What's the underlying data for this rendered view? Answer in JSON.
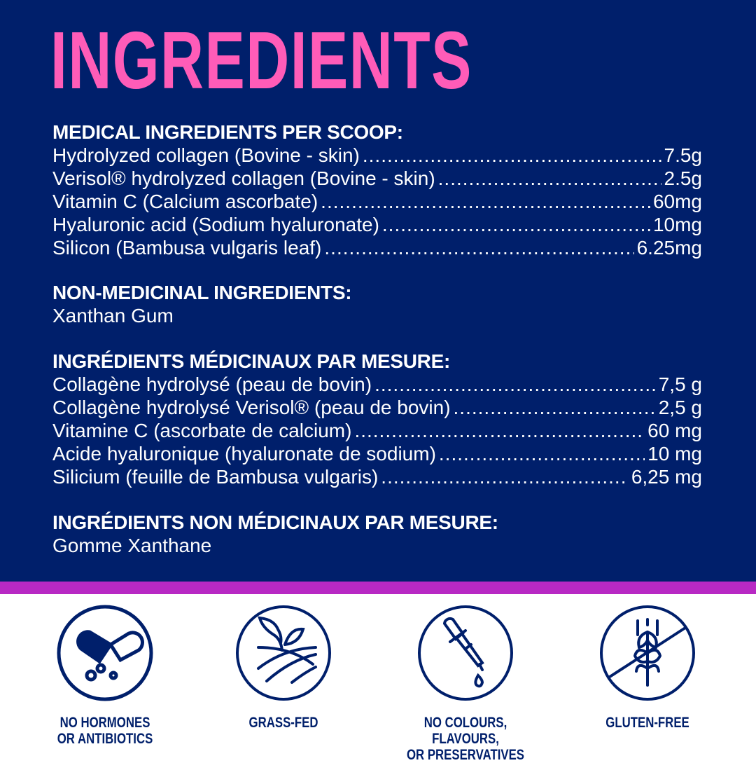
{
  "title": "INGREDIENTS",
  "colors": {
    "navy": "#001f6b",
    "pink": "#ff5cb8",
    "purple": "#b829c4"
  },
  "sections": [
    {
      "heading": "MEDICAL INGREDIENTS PER SCOOP:",
      "items": [
        {
          "name": "Hydrolyzed collagen (Bovine - skin)",
          "amount": "7.5g"
        },
        {
          "name": "Verisol® hydrolyzed collagen (Bovine - skin)",
          "amount": "2.5g"
        },
        {
          "name": "Vitamin C (Calcium ascorbate)",
          "amount": "60mg"
        },
        {
          "name": "Hyaluronic acid (Sodium hyaluronate)",
          "amount": "10mg"
        },
        {
          "name": "Silicon (Bambusa vulgaris leaf)",
          "amount": "6.25mg"
        }
      ]
    },
    {
      "heading": "NON-MEDICINAL INGREDIENTS:",
      "text": "Xanthan Gum"
    },
    {
      "heading": "INGRÉDIENTS MÉDICINAUX PAR MESURE:",
      "items": [
        {
          "name": "Collagène hydrolysé (peau de bovin)",
          "amount": "7,5 g"
        },
        {
          "name": "Collagène hydrolysé Verisol® (peau de bovin)",
          "amount": "2,5 g"
        },
        {
          "name": "Vitamine C (ascorbate de calcium)",
          "amount": "60 mg"
        },
        {
          "name": "Acide hyaluronique (hyaluronate de sodium)",
          "amount": "10 mg"
        },
        {
          "name": "Silicium (feuille de Bambusa vulgaris)",
          "amount": "6,25 mg"
        }
      ]
    },
    {
      "heading": "INGRÉDIENTS NON MÉDICINAUX PAR MESURE:",
      "text": "Gomme Xanthane"
    }
  ],
  "badges": [
    {
      "icon": "capsule-icon",
      "line1": "NO HORMONES",
      "line2": "OR ANTIBIOTICS"
    },
    {
      "icon": "sprout-field-icon",
      "line1": "GRASS-FED",
      "line2": ""
    },
    {
      "icon": "dropper-icon",
      "line1": "NO COLOURS, FLAVOURS,",
      "line2": "OR PRESERVATIVES"
    },
    {
      "icon": "no-wheat-icon",
      "line1": "GLUTEN-FREE",
      "line2": ""
    }
  ]
}
